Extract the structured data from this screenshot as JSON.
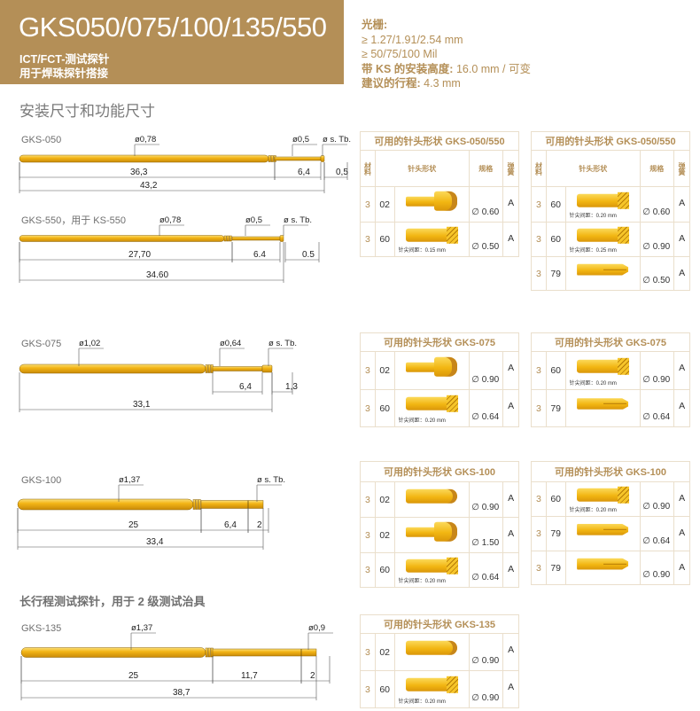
{
  "header": {
    "title": "GKS050/075/100/135/550",
    "subtitle_1": "ICT/FCT-测试探针",
    "subtitle_2": "用于焊珠探针搭接",
    "bg_color": "#b48f57"
  },
  "specs": {
    "grid_label": "光栅:",
    "grid_mm": "≥ 1.27/1.91/2.54 mm",
    "grid_mil": "≥ 50/75/100 Mil",
    "install_label": "带 KS 的安装高度:",
    "install_value": " 16.0 mm / 可变",
    "stroke_label": "建议的行程:",
    "stroke_value": " 4.3 mm"
  },
  "section_title": "安装尺寸和功能尺寸",
  "long_stroke_title": "长行程测试探针，用于 2 级测试治具",
  "probes": [
    {
      "label": "GKS-050",
      "diameters": [
        "ø0,78",
        "ø0,5",
        "ø s. Tb."
      ],
      "dims": [
        "36,3",
        "6,4",
        "0,5",
        "43,2"
      ]
    },
    {
      "label": "GKS-550，用于 KS-550",
      "diameters": [
        "ø0,78",
        "ø0,5",
        "ø s. Tb."
      ],
      "dims": [
        "27,70",
        "6.4",
        "0.5",
        "34.60"
      ]
    },
    {
      "label": "GKS-075",
      "diameters": [
        "ø1,02",
        "ø0,64",
        "ø s. Tb."
      ],
      "dims": [
        "6,4",
        "1,3",
        "33,1"
      ]
    },
    {
      "label": "GKS-100",
      "diameters": [
        "ø1,37",
        "ø s. Tb."
      ],
      "dims": [
        "25",
        "6,4",
        "2",
        "33,4"
      ]
    },
    {
      "label": "GKS-135",
      "diameters": [
        "ø1,37",
        "ø0,9"
      ],
      "dims": [
        "25",
        "11,7",
        "2",
        "38,7"
      ]
    }
  ],
  "table_header": {
    "material": "材料",
    "shape": "针头形状",
    "spec": "规格",
    "spring": "弹簧"
  },
  "tables": [
    {
      "title": "可用的针头形状 GKS-050/550",
      "show_header": true,
      "rows": [
        {
          "material": "3",
          "code": "02",
          "tip_icon": "stepped-head-tip-icon",
          "note": "",
          "spec": "∅ 0.60",
          "spring": "A"
        },
        {
          "material": "3",
          "code": "60",
          "tip_icon": "crown-tip-icon",
          "note": "针尖间距：0.15 mm",
          "spec": "∅ 0.50",
          "spring": "A"
        }
      ]
    },
    {
      "title": "可用的针头形状 GKS-050/550",
      "show_header": true,
      "rows": [
        {
          "material": "3",
          "code": "60",
          "tip_icon": "crown-tip-icon",
          "note": "针尖间距：0.20 mm",
          "spec": "∅ 0.60",
          "spring": "A"
        },
        {
          "material": "3",
          "code": "60",
          "tip_icon": "crown-tip-icon",
          "note": "针尖间距：0.25 mm",
          "spec": "∅ 0.90",
          "spring": "A"
        },
        {
          "material": "3",
          "code": "79",
          "tip_icon": "spear-tip-icon",
          "note": "",
          "spec": "∅ 0.50",
          "spring": "A"
        }
      ]
    },
    {
      "title": "可用的针头形状 GKS-075",
      "show_header": false,
      "rows": [
        {
          "material": "3",
          "code": "02",
          "tip_icon": "stepped-head-tip-icon",
          "note": "",
          "spec": "∅ 0.90",
          "spring": "A"
        },
        {
          "material": "3",
          "code": "60",
          "tip_icon": "crown-tip-icon",
          "note": "针尖间距：0.20 mm",
          "spec": "∅ 0.64",
          "spring": "A"
        }
      ]
    },
    {
      "title": "可用的针头形状 GKS-075",
      "show_header": false,
      "rows": [
        {
          "material": "3",
          "code": "60",
          "tip_icon": "crown-tip-icon",
          "note": "针尖间距：0.20 mm",
          "spec": "∅ 0.90",
          "spring": "A"
        },
        {
          "material": "3",
          "code": "79",
          "tip_icon": "spear-tip-icon",
          "note": "",
          "spec": "∅ 0.64",
          "spring": "A"
        }
      ]
    },
    {
      "title": "可用的针头形状 GKS-100",
      "show_header": false,
      "rows": [
        {
          "material": "3",
          "code": "02",
          "tip_icon": "cylinder-tip-icon",
          "note": "",
          "spec": "∅ 0.90",
          "spring": "A"
        },
        {
          "material": "3",
          "code": "02",
          "tip_icon": "stepped-head-tip-icon",
          "note": "",
          "spec": "∅ 1.50",
          "spring": "A"
        },
        {
          "material": "3",
          "code": "60",
          "tip_icon": "crown-tip-icon",
          "note": "针尖间距：0.20 mm",
          "spec": "∅ 0.64",
          "spring": "A"
        }
      ]
    },
    {
      "title": "可用的针头形状 GKS-100",
      "show_header": false,
      "rows": [
        {
          "material": "3",
          "code": "60",
          "tip_icon": "crown-tip-icon",
          "note": "针尖间距：0.20 mm",
          "spec": "∅ 0.90",
          "spring": "A"
        },
        {
          "material": "3",
          "code": "79",
          "tip_icon": "spear-tip-icon",
          "note": "",
          "spec": "∅ 0.64",
          "spring": "A"
        },
        {
          "material": "3",
          "code": "79",
          "tip_icon": "spear-tip-icon",
          "note": "",
          "spec": "∅ 0.90",
          "spring": "A"
        }
      ]
    },
    {
      "title": "可用的针头形状 GKS-135",
      "show_header": false,
      "rows": [
        {
          "material": "3",
          "code": "02",
          "tip_icon": "cylinder-tip-icon",
          "note": "",
          "spec": "∅ 0.90",
          "spring": "A"
        },
        {
          "material": "3",
          "code": "60",
          "tip_icon": "crown-tip-icon",
          "note": "针尖间距：0.20 mm",
          "spec": "∅ 0.90",
          "spring": "A"
        }
      ]
    }
  ]
}
